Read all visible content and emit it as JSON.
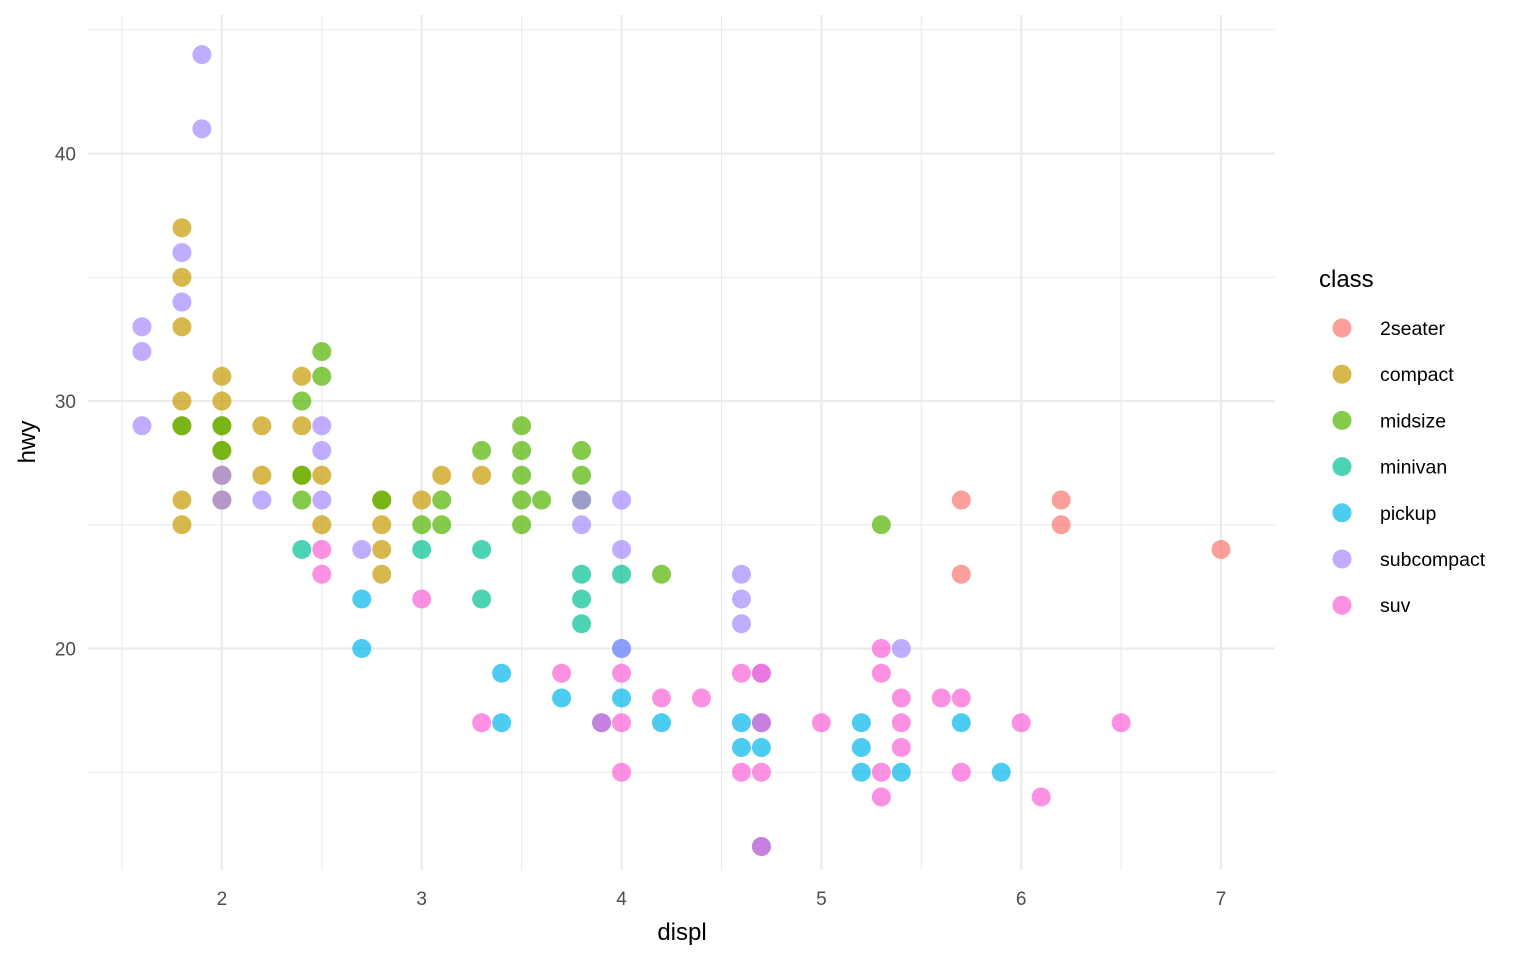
{
  "chart_data": {
    "type": "scatter",
    "xlabel": "displ",
    "ylabel": "hwy",
    "xlim": [
      1.33,
      7.27
    ],
    "ylim": [
      11.05,
      45.6
    ],
    "x_ticks": [
      2,
      3,
      4,
      5,
      6,
      7
    ],
    "y_ticks": [
      20,
      30,
      40
    ],
    "x_tick_labels": [
      "2",
      "3",
      "4",
      "5",
      "6",
      "7"
    ],
    "y_tick_labels": [
      "20",
      "30",
      "40"
    ],
    "grid": true,
    "legend": {
      "title": "class",
      "placement": "right"
    },
    "series": [
      {
        "name": "2seater",
        "color": "#F8766D",
        "points": [
          [
            5.7,
            26
          ],
          [
            5.7,
            23
          ],
          [
            6.2,
            26
          ],
          [
            6.2,
            25
          ],
          [
            7.0,
            24
          ]
        ]
      },
      {
        "name": "compact",
        "color": "#C49A00",
        "points": [
          [
            1.8,
            37
          ],
          [
            1.8,
            35
          ],
          [
            1.8,
            33
          ],
          [
            1.8,
            30
          ],
          [
            1.8,
            29
          ],
          [
            1.8,
            26
          ],
          [
            1.8,
            25
          ],
          [
            2.0,
            31
          ],
          [
            2.0,
            30
          ],
          [
            2.0,
            29
          ],
          [
            2.0,
            28
          ],
          [
            2.0,
            27
          ],
          [
            2.0,
            26
          ],
          [
            2.2,
            29
          ],
          [
            2.2,
            27
          ],
          [
            2.4,
            31
          ],
          [
            2.4,
            29
          ],
          [
            2.4,
            27
          ],
          [
            2.5,
            27
          ],
          [
            2.5,
            25
          ],
          [
            2.8,
            26
          ],
          [
            2.8,
            25
          ],
          [
            2.8,
            24
          ],
          [
            2.8,
            23
          ],
          [
            3.0,
            26
          ],
          [
            3.1,
            27
          ],
          [
            3.3,
            27
          ]
        ]
      },
      {
        "name": "midsize",
        "color": "#53B400",
        "points": [
          [
            1.8,
            29
          ],
          [
            2.0,
            29
          ],
          [
            2.0,
            28
          ],
          [
            2.4,
            30
          ],
          [
            2.4,
            27
          ],
          [
            2.4,
            26
          ],
          [
            2.5,
            32
          ],
          [
            2.5,
            31
          ],
          [
            2.8,
            26
          ],
          [
            3.0,
            25
          ],
          [
            3.1,
            26
          ],
          [
            3.1,
            25
          ],
          [
            3.3,
            28
          ],
          [
            3.5,
            29
          ],
          [
            3.5,
            28
          ],
          [
            3.5,
            27
          ],
          [
            3.5,
            26
          ],
          [
            3.5,
            25
          ],
          [
            3.6,
            26
          ],
          [
            3.8,
            28
          ],
          [
            3.8,
            27
          ],
          [
            3.8,
            26
          ],
          [
            4.2,
            23
          ],
          [
            5.3,
            25
          ]
        ]
      },
      {
        "name": "minivan",
        "color": "#00C094",
        "points": [
          [
            2.4,
            24
          ],
          [
            3.0,
            24
          ],
          [
            3.3,
            24
          ],
          [
            3.3,
            22
          ],
          [
            3.8,
            23
          ],
          [
            3.8,
            22
          ],
          [
            3.8,
            21
          ],
          [
            4.0,
            23
          ]
        ]
      },
      {
        "name": "pickup",
        "color": "#00B6EB",
        "points": [
          [
            2.7,
            22
          ],
          [
            2.7,
            20
          ],
          [
            3.4,
            19
          ],
          [
            3.4,
            17
          ],
          [
            3.7,
            18
          ],
          [
            3.9,
            17
          ],
          [
            4.0,
            20
          ],
          [
            4.0,
            18
          ],
          [
            4.2,
            17
          ],
          [
            4.6,
            17
          ],
          [
            4.6,
            16
          ],
          [
            4.7,
            17
          ],
          [
            4.7,
            16
          ],
          [
            4.7,
            12
          ],
          [
            5.2,
            17
          ],
          [
            5.2,
            16
          ],
          [
            5.2,
            15
          ],
          [
            5.4,
            15
          ],
          [
            5.7,
            17
          ],
          [
            5.9,
            15
          ]
        ]
      },
      {
        "name": "subcompact",
        "color": "#A58AFF",
        "points": [
          [
            1.6,
            33
          ],
          [
            1.6,
            32
          ],
          [
            1.6,
            29
          ],
          [
            1.8,
            36
          ],
          [
            1.8,
            34
          ],
          [
            1.9,
            44
          ],
          [
            1.9,
            41
          ],
          [
            2.0,
            27
          ],
          [
            2.0,
            26
          ],
          [
            2.2,
            26
          ],
          [
            2.5,
            29
          ],
          [
            2.5,
            28
          ],
          [
            2.5,
            26
          ],
          [
            2.7,
            24
          ],
          [
            3.8,
            26
          ],
          [
            3.8,
            25
          ],
          [
            4.0,
            26
          ],
          [
            4.0,
            24
          ],
          [
            4.0,
            20
          ],
          [
            4.6,
            23
          ],
          [
            4.6,
            22
          ],
          [
            4.6,
            21
          ],
          [
            4.7,
            19
          ],
          [
            5.4,
            20
          ]
        ]
      },
      {
        "name": "suv",
        "color": "#FB61D7",
        "points": [
          [
            2.5,
            24
          ],
          [
            2.5,
            23
          ],
          [
            3.0,
            22
          ],
          [
            3.3,
            17
          ],
          [
            3.7,
            19
          ],
          [
            3.9,
            17
          ],
          [
            4.0,
            19
          ],
          [
            4.0,
            17
          ],
          [
            4.0,
            15
          ],
          [
            4.2,
            18
          ],
          [
            4.4,
            18
          ],
          [
            4.6,
            19
          ],
          [
            4.6,
            15
          ],
          [
            4.7,
            19
          ],
          [
            4.7,
            17
          ],
          [
            4.7,
            15
          ],
          [
            4.7,
            12
          ],
          [
            5.0,
            17
          ],
          [
            5.3,
            20
          ],
          [
            5.3,
            19
          ],
          [
            5.3,
            15
          ],
          [
            5.3,
            14
          ],
          [
            5.4,
            18
          ],
          [
            5.4,
            17
          ],
          [
            5.4,
            16
          ],
          [
            5.6,
            18
          ],
          [
            5.7,
            18
          ],
          [
            5.7,
            15
          ],
          [
            6.0,
            17
          ],
          [
            6.1,
            14
          ],
          [
            6.5,
            17
          ]
        ]
      }
    ]
  }
}
